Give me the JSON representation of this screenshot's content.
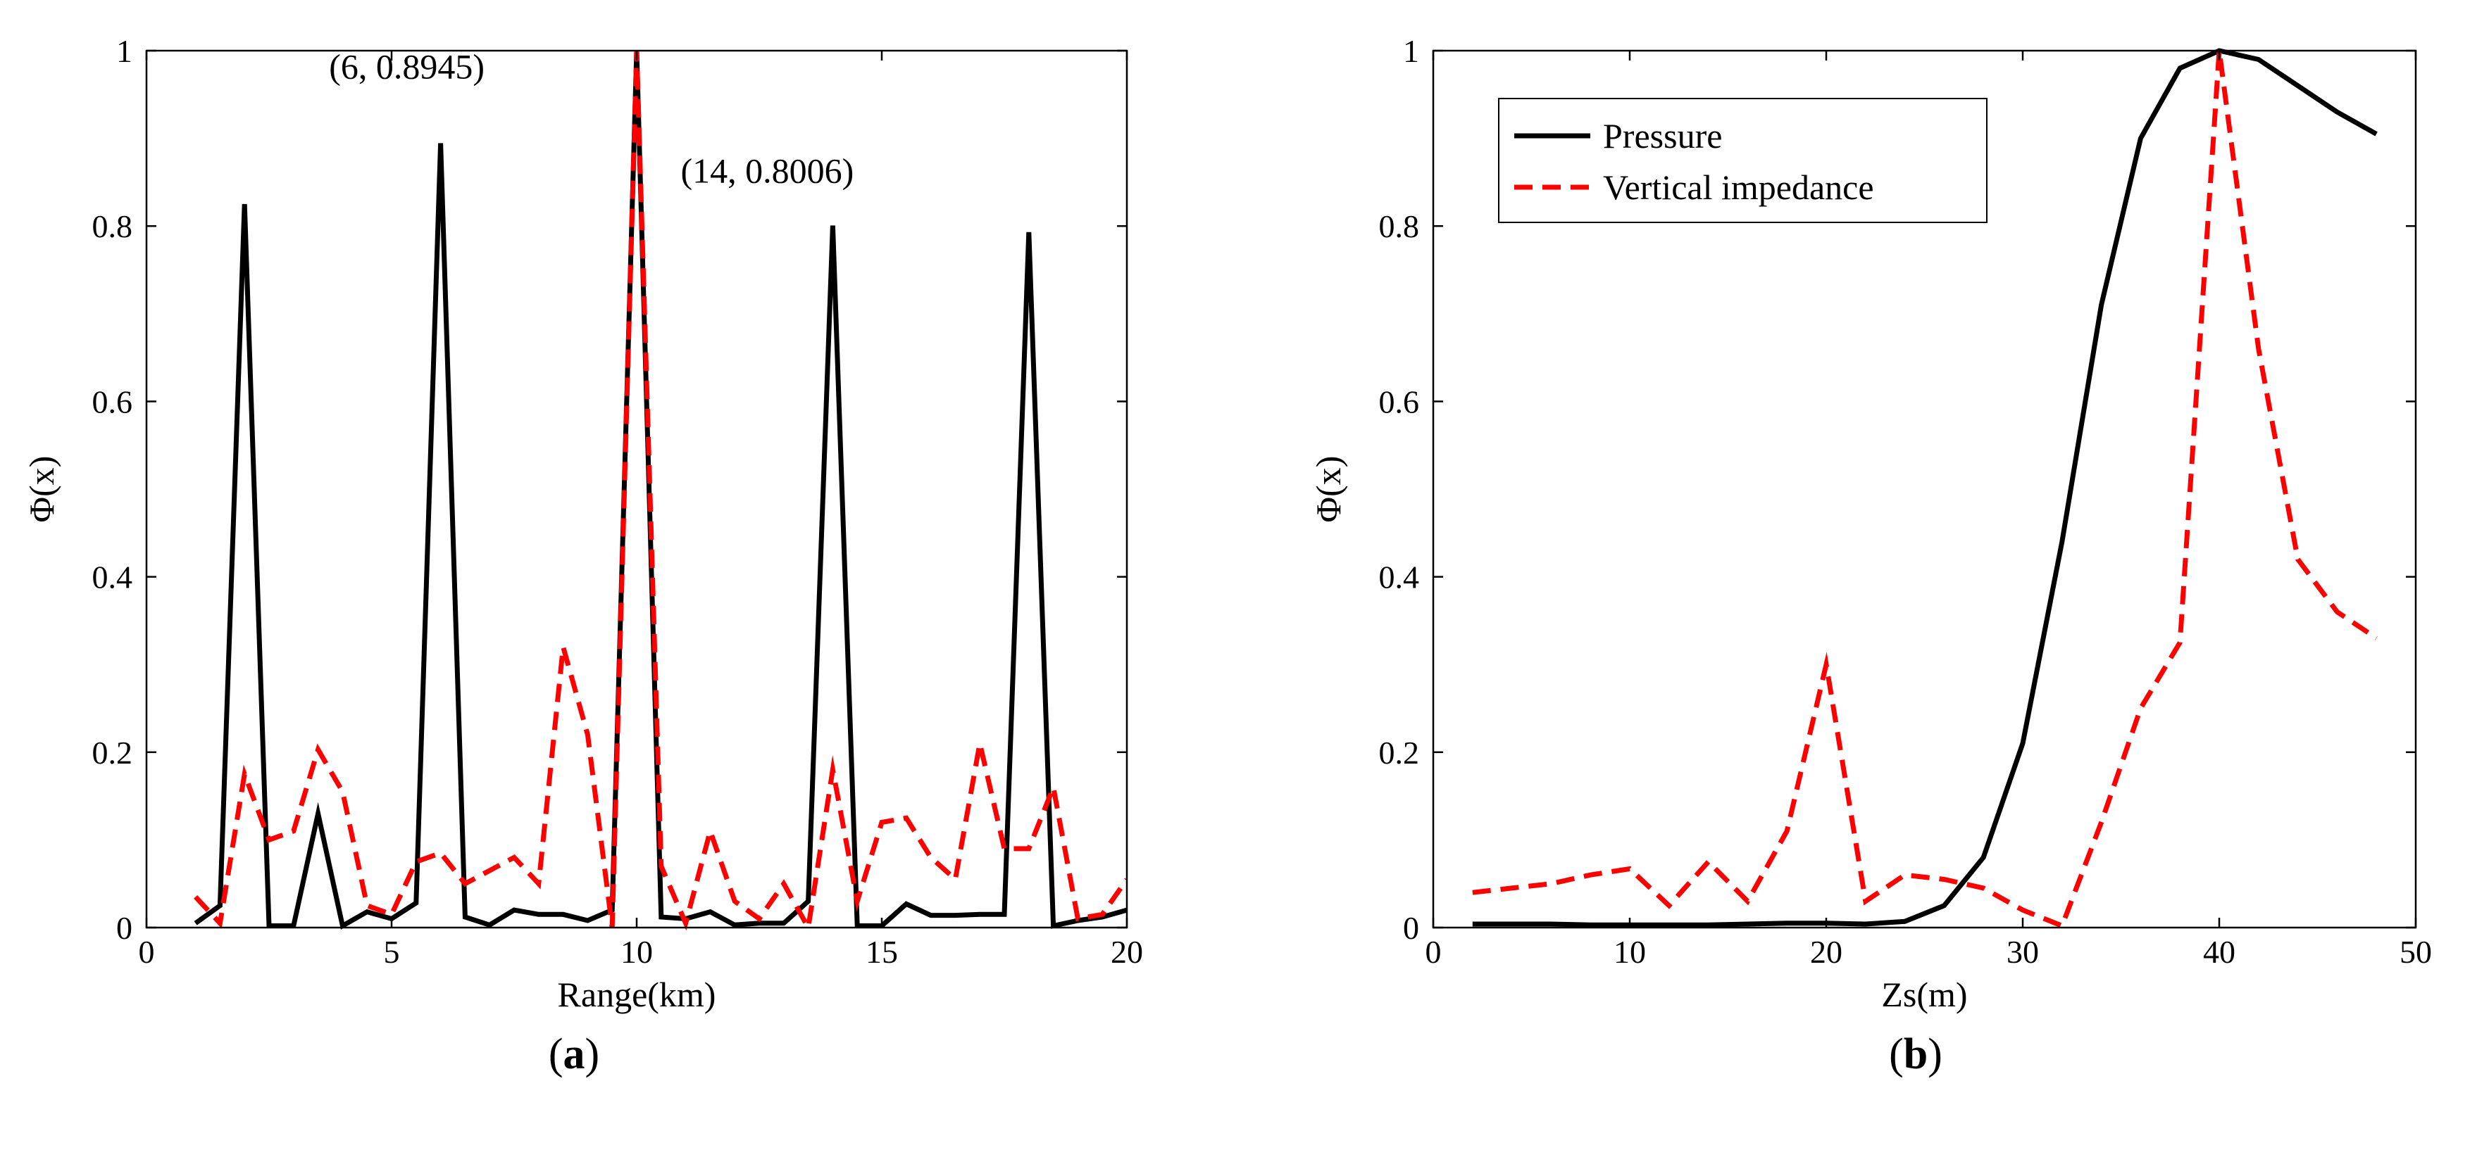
{
  "chart_data": [
    {
      "type": "line",
      "caption_prefix": "(",
      "caption_letter": "a",
      "caption_suffix": ")",
      "xlabel": "Range(km)",
      "ylabel": "Φ(x)",
      "xlim": [
        0,
        20
      ],
      "ylim": [
        0,
        1
      ],
      "xticks": [
        0,
        5,
        10,
        15,
        20
      ],
      "yticks": [
        0,
        0.2,
        0.4,
        0.6,
        0.8,
        1
      ],
      "ytick_labels": [
        "0",
        "0.2",
        "0.4",
        "0.6",
        "0.8",
        "1"
      ],
      "annotations": [
        {
          "text": "(6, 0.8945)",
          "x": 6,
          "y": 0.8945
        },
        {
          "text": "(14, 0.8006)",
          "x": 14,
          "y": 0.8006
        }
      ],
      "series": [
        {
          "name": "Pressure",
          "color": "#000000",
          "dashed": false,
          "x": [
            1,
            1.5,
            2,
            2.5,
            3,
            3.5,
            4,
            4.5,
            5,
            5.5,
            6,
            6.5,
            7,
            7.5,
            8,
            8.5,
            9,
            9.5,
            10,
            10.5,
            11,
            11.5,
            12,
            12.5,
            13,
            13.5,
            14,
            14.5,
            15,
            15.5,
            16,
            16.5,
            17,
            17.5,
            18,
            18.5,
            19,
            19.5,
            20
          ],
          "y": [
            0.005,
            0.025,
            0.825,
            0.002,
            0.002,
            0.13,
            0.002,
            0.018,
            0.01,
            0.028,
            0.8945,
            0.012,
            0.003,
            0.02,
            0.015,
            0.015,
            0.008,
            0.02,
            1.0,
            0.012,
            0.01,
            0.018,
            0.003,
            0.005,
            0.005,
            0.03,
            0.8006,
            0.002,
            0.002,
            0.027,
            0.014,
            0.014,
            0.015,
            0.015,
            0.793,
            0.002,
            0.008,
            0.012,
            0.02
          ]
        },
        {
          "name": "Vertical impedance",
          "color": "#ff0000",
          "dashed": true,
          "x": [
            1,
            1.5,
            2,
            2.5,
            3,
            3.5,
            4,
            4.5,
            5,
            5.5,
            6,
            6.5,
            7,
            7.5,
            8,
            8.5,
            9,
            9.5,
            10,
            10.5,
            11,
            11.5,
            12,
            12.5,
            13,
            13.5,
            14,
            14.5,
            15,
            15.5,
            16,
            16.5,
            17,
            17.5,
            18,
            18.5,
            19,
            19.5,
            20
          ],
          "y": [
            0.035,
            0.005,
            0.175,
            0.1,
            0.11,
            0.203,
            0.155,
            0.025,
            0.015,
            0.075,
            0.085,
            0.05,
            0.065,
            0.08,
            0.05,
            0.32,
            0.22,
            0.0,
            1.0,
            0.07,
            0.005,
            0.11,
            0.03,
            0.01,
            0.05,
            0.0,
            0.18,
            0.03,
            0.12,
            0.125,
            0.08,
            0.055,
            0.21,
            0.09,
            0.09,
            0.16,
            0.01,
            0.015,
            0.055
          ]
        }
      ]
    },
    {
      "type": "line",
      "caption_prefix": "(",
      "caption_letter": "b",
      "caption_suffix": ")",
      "xlabel": "Zs(m)",
      "ylabel": "Φ(x)",
      "xlim": [
        0,
        50
      ],
      "ylim": [
        0,
        1
      ],
      "xticks": [
        0,
        10,
        20,
        30,
        40,
        50
      ],
      "yticks": [
        0,
        0.2,
        0.4,
        0.6,
        0.8,
        1
      ],
      "ytick_labels": [
        "0",
        "0.2",
        "0.4",
        "0.6",
        "0.8",
        "1"
      ],
      "legend": "top-left",
      "series": [
        {
          "name": "Pressure",
          "color": "#000000",
          "dashed": false,
          "x": [
            2,
            4,
            6,
            8,
            10,
            12,
            14,
            16,
            18,
            20,
            22,
            24,
            26,
            28,
            30,
            32,
            34,
            36,
            38,
            40,
            42,
            44,
            46,
            48
          ],
          "y": [
            0.004,
            0.004,
            0.004,
            0.003,
            0.003,
            0.003,
            0.003,
            0.004,
            0.005,
            0.005,
            0.004,
            0.007,
            0.025,
            0.08,
            0.21,
            0.44,
            0.71,
            0.9,
            0.98,
            1.0,
            0.99,
            0.96,
            0.93,
            0.905
          ]
        },
        {
          "name": "Vertical impedance",
          "color": "#ff0000",
          "dashed": true,
          "x": [
            2,
            4,
            6,
            8,
            10,
            12,
            14,
            16,
            18,
            20,
            22,
            24,
            26,
            28,
            30,
            32,
            34,
            36,
            38,
            40,
            42,
            44,
            46,
            48
          ],
          "y": [
            0.04,
            0.045,
            0.05,
            0.06,
            0.067,
            0.025,
            0.075,
            0.03,
            0.11,
            0.3,
            0.03,
            0.06,
            0.055,
            0.045,
            0.02,
            0.002,
            0.12,
            0.25,
            0.325,
            1.0,
            0.66,
            0.42,
            0.36,
            0.33
          ]
        }
      ]
    }
  ]
}
